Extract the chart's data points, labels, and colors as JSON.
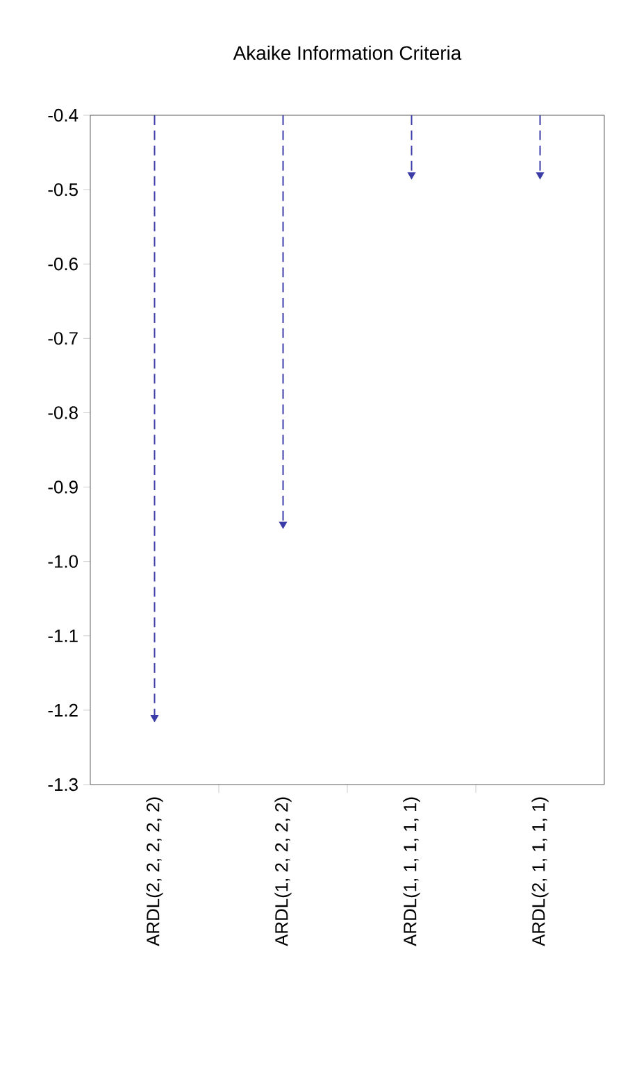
{
  "chart_data": {
    "type": "lollipop",
    "title": "Akaike Information Criteria",
    "categories": [
      "ARDL(2, 2, 2, 2, 2)",
      "ARDL(1, 2, 2, 2, 2)",
      "ARDL(1, 1, 1, 1, 1)",
      "ARDL(2, 1, 1, 1, 1)"
    ],
    "values": [
      -1.21,
      -0.95,
      -0.48,
      -0.48
    ],
    "color": "#3c3ca8",
    "line_style": "dashed",
    "marker": "triangle",
    "ylim": [
      -1.3,
      -0.4
    ],
    "yticks": [
      -1.3,
      -1.2,
      -1.1,
      {
        "value": -1.0,
        "label": "-1.0"
      },
      -0.9,
      -0.8,
      -0.7,
      -0.6,
      -0.5,
      -0.4
    ]
  }
}
